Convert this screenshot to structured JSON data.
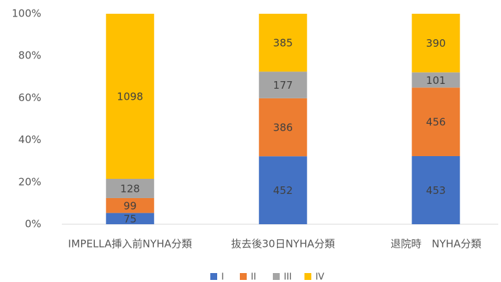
{
  "chart_data": {
    "type": "bar",
    "stacking": "percent",
    "categories": [
      "IMPELLA挿入前NYHA分類",
      "抜去後30日NYHA分類",
      "退院時　NYHA分類"
    ],
    "series": [
      {
        "name": "I",
        "color": "#4472c4",
        "values": [
          75,
          452,
          453
        ]
      },
      {
        "name": "II",
        "color": "#ed7d31",
        "values": [
          99,
          386,
          456
        ]
      },
      {
        "name": "III",
        "color": "#a5a5a5",
        "values": [
          128,
          177,
          101
        ]
      },
      {
        "name": "IV",
        "color": "#ffc000",
        "values": [
          1098,
          385,
          390
        ]
      }
    ],
    "ylim": [
      0,
      100
    ],
    "yticks": [
      {
        "value": 0,
        "label": "0%"
      },
      {
        "value": 20,
        "label": "20%"
      },
      {
        "value": 40,
        "label": "40%"
      },
      {
        "value": 60,
        "label": "60%"
      },
      {
        "value": 80,
        "label": "80%"
      },
      {
        "value": 100,
        "label": "100%"
      }
    ],
    "grid": false,
    "legend": "bottom"
  }
}
